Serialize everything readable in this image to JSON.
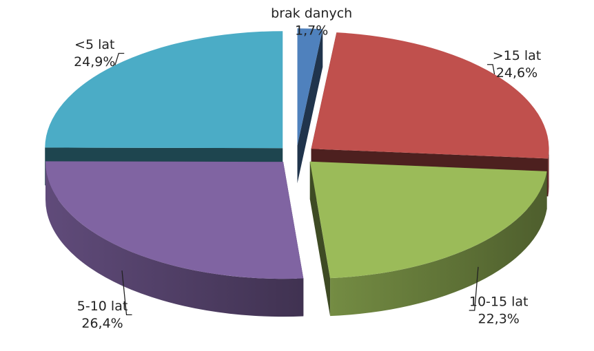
{
  "chart_data": {
    "type": "pie3d",
    "categories": [
      "brak danych",
      ">15 lat",
      "10-15 lat",
      "5-10 lat",
      "<5 lat"
    ],
    "values": [
      1.7,
      24.6,
      22.3,
      26.4,
      24.9
    ],
    "value_labels": [
      "1,7%",
      "24,6%",
      "22,3%",
      "26,4%",
      "24,9%"
    ],
    "colors": [
      "#4f81bd",
      "#c0504d",
      "#9bbb59",
      "#8064a2",
      "#4bacc6"
    ]
  }
}
